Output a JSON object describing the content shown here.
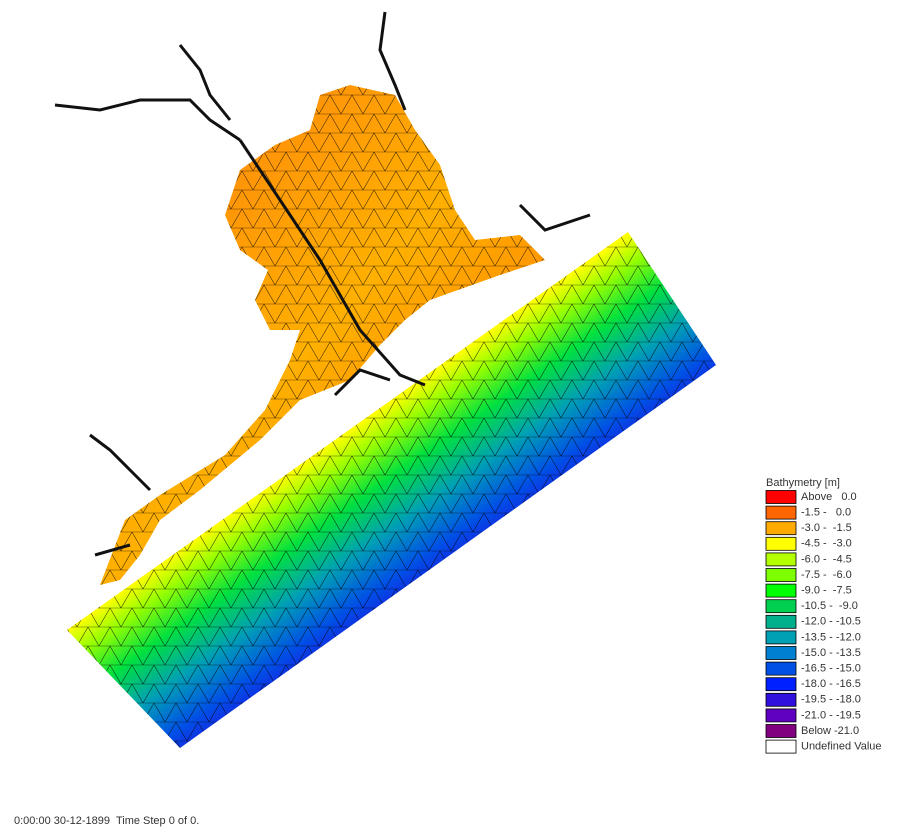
{
  "legend": {
    "title": "Bathymetry [m]",
    "items": [
      {
        "label": "Above   0.0",
        "color": "#ff0000"
      },
      {
        "label": "-1.5 -   0.0",
        "color": "#ff6600"
      },
      {
        "label": "-3.0 -  -1.5",
        "color": "#ffaa00"
      },
      {
        "label": "-4.5 -  -3.0",
        "color": "#ffff00"
      },
      {
        "label": "-6.0 -  -4.5",
        "color": "#b4ff00"
      },
      {
        "label": "-7.5 -  -6.0",
        "color": "#7dff00"
      },
      {
        "label": "-9.0 -  -7.5",
        "color": "#00ff00"
      },
      {
        "label": "-10.5 -  -9.0",
        "color": "#00d050"
      },
      {
        "label": "-12.0 - -10.5",
        "color": "#00b08c"
      },
      {
        "label": "-13.5 - -12.0",
        "color": "#00a0b4"
      },
      {
        "label": "-15.0 - -13.5",
        "color": "#0080d0"
      },
      {
        "label": "-16.5 - -15.0",
        "color": "#0050e6"
      },
      {
        "label": "-18.0 - -16.5",
        "color": "#0020ff"
      },
      {
        "label": "-19.5 - -18.0",
        "color": "#3010dc"
      },
      {
        "label": "-21.0 - -19.5",
        "color": "#6000c0"
      },
      {
        "label": "Below -21.0",
        "color": "#800080"
      },
      {
        "label": "Undefined Value",
        "color": "#ffffff"
      }
    ]
  },
  "status": "0:00:00 30-12-1899  Time Step 0 of 0."
}
